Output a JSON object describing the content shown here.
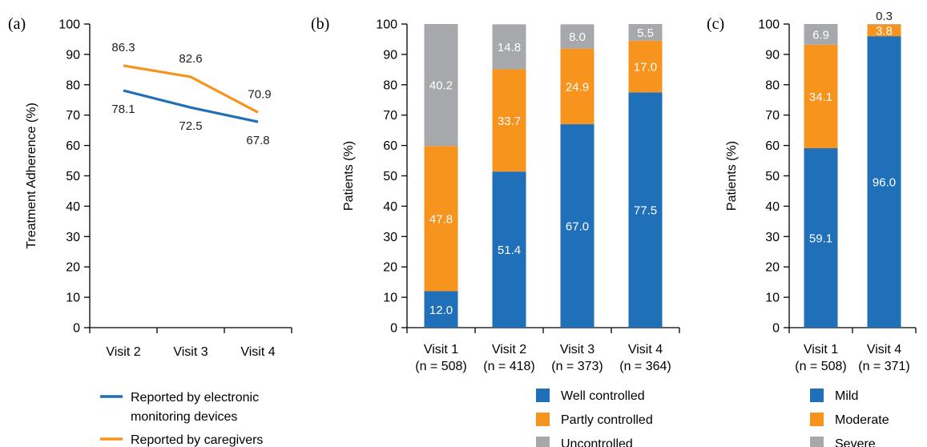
{
  "colors": {
    "blue": "#1f6fb9",
    "orange": "#f7941d",
    "gray": "#a6a8ab",
    "axis": "#000000"
  },
  "chart_data": [
    {
      "panel": "(a)",
      "type": "line",
      "ylabel": "Treatment Adherence (%)",
      "ylim": [
        0,
        100
      ],
      "yticks": [
        0,
        10,
        20,
        30,
        40,
        50,
        60,
        70,
        80,
        90,
        100
      ],
      "categories": [
        "Visit 2",
        "Visit 3",
        "Visit 4"
      ],
      "series": [
        {
          "name": "Reported by electronic monitoring devices",
          "legend_lines": [
            "Reported by electronic",
            "monitoring devices"
          ],
          "color": "#1f6fb9",
          "values": [
            78.1,
            72.5,
            67.8
          ],
          "labels": [
            "78.1",
            "72.5",
            "67.8"
          ]
        },
        {
          "name": "Reported by caregivers",
          "legend_lines": [
            "Reported by caregivers"
          ],
          "color": "#f7941d",
          "values": [
            86.3,
            82.6,
            70.9
          ],
          "labels": [
            "86.3",
            "82.6",
            "70.9"
          ]
        }
      ]
    },
    {
      "panel": "(b)",
      "type": "bar",
      "stacked": true,
      "ylabel": "Patients (%)",
      "ylim": [
        0,
        100
      ],
      "yticks": [
        0,
        10,
        20,
        30,
        40,
        50,
        60,
        70,
        80,
        90,
        100
      ],
      "categories": [
        "Visit 1",
        "Visit 2",
        "Visit 3",
        "Visit 4"
      ],
      "subcategories": [
        "(n = 508)",
        "(n = 418)",
        "(n = 373)",
        "(n = 364)"
      ],
      "series": [
        {
          "name": "Well controlled",
          "color": "#1f6fb9",
          "values": [
            12.0,
            51.4,
            67.0,
            77.5
          ],
          "labels": [
            "12.0",
            "51.4",
            "67.0",
            "77.5"
          ]
        },
        {
          "name": "Partly controlled",
          "color": "#f7941d",
          "values": [
            47.8,
            33.7,
            24.9,
            17.0
          ],
          "labels": [
            "47.8",
            "33.7",
            "24.9",
            "17.0"
          ]
        },
        {
          "name": "Uncontrolled",
          "color": "#a6a8ab",
          "values": [
            40.2,
            14.8,
            8.0,
            5.5
          ],
          "labels": [
            "40.2",
            "14.8",
            "8.0",
            "5.5"
          ]
        }
      ]
    },
    {
      "panel": "(c)",
      "type": "bar",
      "stacked": true,
      "ylabel": "Patients (%)",
      "ylim": [
        0,
        100
      ],
      "yticks": [
        0,
        10,
        20,
        30,
        40,
        50,
        60,
        70,
        80,
        90,
        100
      ],
      "categories": [
        "Visit 1",
        "Visit 4"
      ],
      "subcategories": [
        "(n = 508)",
        "(n = 371)"
      ],
      "series": [
        {
          "name": "Mild",
          "color": "#1f6fb9",
          "values": [
            59.1,
            96.0
          ],
          "labels": [
            "59.1",
            "96.0"
          ]
        },
        {
          "name": "Moderate",
          "color": "#f7941d",
          "values": [
            34.1,
            3.8
          ],
          "labels": [
            "34.1",
            "3.8"
          ]
        },
        {
          "name": "Severe",
          "color": "#a6a8ab",
          "values": [
            6.9,
            0.3
          ],
          "labels": [
            "6.9",
            "0.3"
          ]
        }
      ]
    }
  ]
}
